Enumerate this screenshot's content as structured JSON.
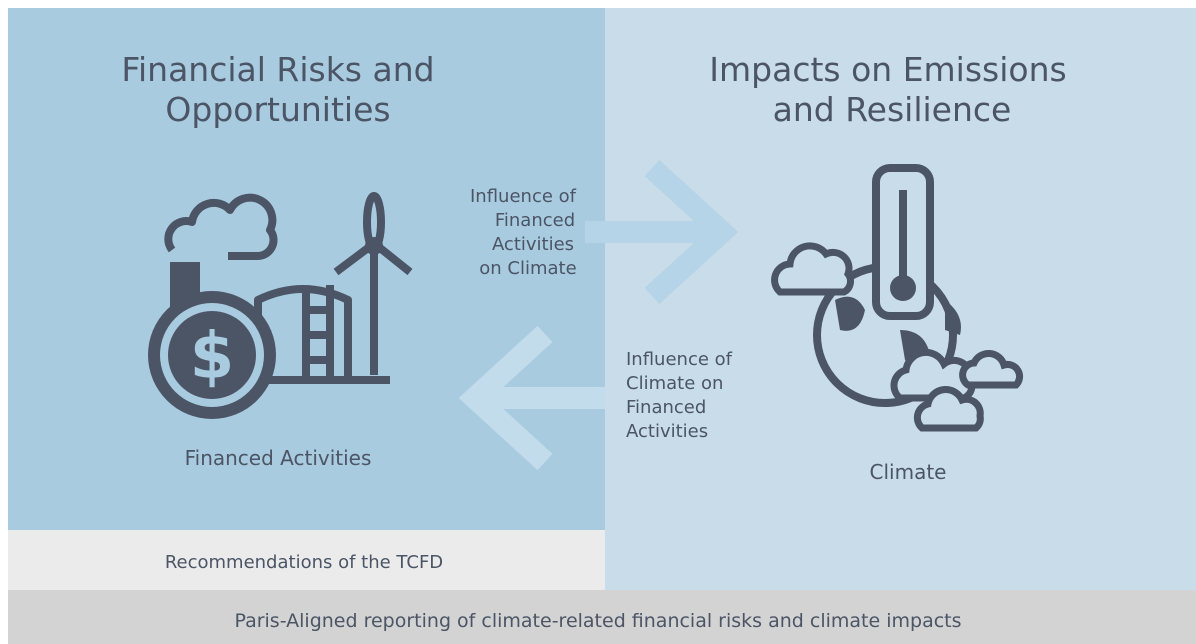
{
  "left_panel": {
    "title_lines": [
      "Financial Risks and",
      "Opportunities"
    ],
    "icon_label": "Financed Activities",
    "footer": "Recommendations of the TCFD"
  },
  "right_panel": {
    "title_lines": [
      "Impacts on Emissions",
      "and  Resilience"
    ],
    "icon_label": "Climate"
  },
  "arrows": [
    {
      "label_lines": [
        "Influence of",
        "Financed",
        "Activities",
        "on Climate"
      ]
    },
    {
      "label_lines": [
        "Influence of",
        "Climate on",
        "Financed",
        "Activities"
      ]
    }
  ],
  "footer": "Paris-Aligned reporting of climate-related financial risks and climate impacts"
}
